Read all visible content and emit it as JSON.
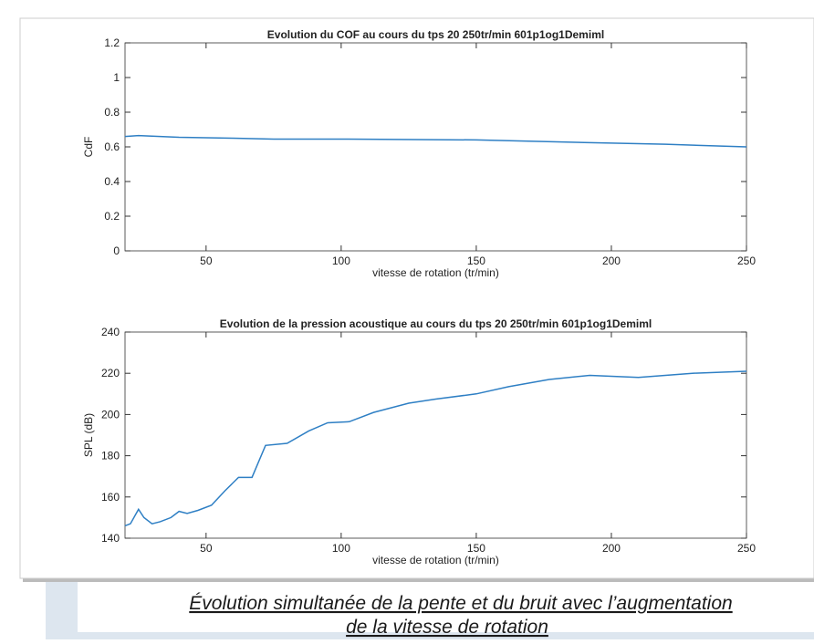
{
  "chart_data": [
    {
      "type": "line",
      "title": "Evolution du COF au cours du tps 20 250tr/min 601p1og1Demiml",
      "x_label": "vitesse de rotation (tr/min)",
      "y_label": "CdF",
      "xlim": [
        20,
        250
      ],
      "xticks": [
        50,
        100,
        150,
        200,
        250
      ],
      "ylim": [
        0,
        1.2
      ],
      "yticks": [
        0,
        0.2,
        0.4,
        0.6,
        0.8,
        1,
        1.2
      ],
      "x": [
        20,
        25,
        40,
        60,
        75,
        100,
        150,
        190,
        220,
        250
      ],
      "series": [
        {
          "color": "#2e7fc4",
          "values": [
            0.66,
            0.665,
            0.655,
            0.65,
            0.645,
            0.645,
            0.64,
            0.625,
            0.615,
            0.6
          ]
        }
      ]
    },
    {
      "type": "line",
      "title": "Evolution de la pression acoustique au cours du tps 20 250tr/min 601p1og1Demiml",
      "x_label": "vitesse de rotation (tr/min)",
      "y_label": "SPL (dB)",
      "xlim": [
        20,
        250
      ],
      "xticks": [
        50,
        100,
        150,
        200,
        250
      ],
      "ylim": [
        140,
        240
      ],
      "yticks": [
        140,
        160,
        180,
        200,
        220,
        240
      ],
      "x": [
        20,
        22,
        25,
        27,
        30,
        33,
        37,
        40,
        43,
        47,
        52,
        57,
        62,
        67,
        72,
        80,
        88,
        95,
        103,
        112,
        125,
        135,
        150,
        162,
        177,
        192,
        210,
        230,
        250
      ],
      "series": [
        {
          "color": "#2e7fc4",
          "values": [
            146,
            147,
            154,
            150,
            147,
            148,
            150,
            153,
            152,
            153.5,
            156,
            163,
            169.5,
            169.5,
            185,
            186,
            192,
            196,
            196.5,
            201,
            205.5,
            207.5,
            210,
            213.5,
            217,
            219,
            218,
            220,
            221
          ]
        }
      ]
    }
  ],
  "caption": [
    "Évolution simultanée de la pente et du bruit  avec l’augmentation",
    "de la vitesse de rotation"
  ]
}
